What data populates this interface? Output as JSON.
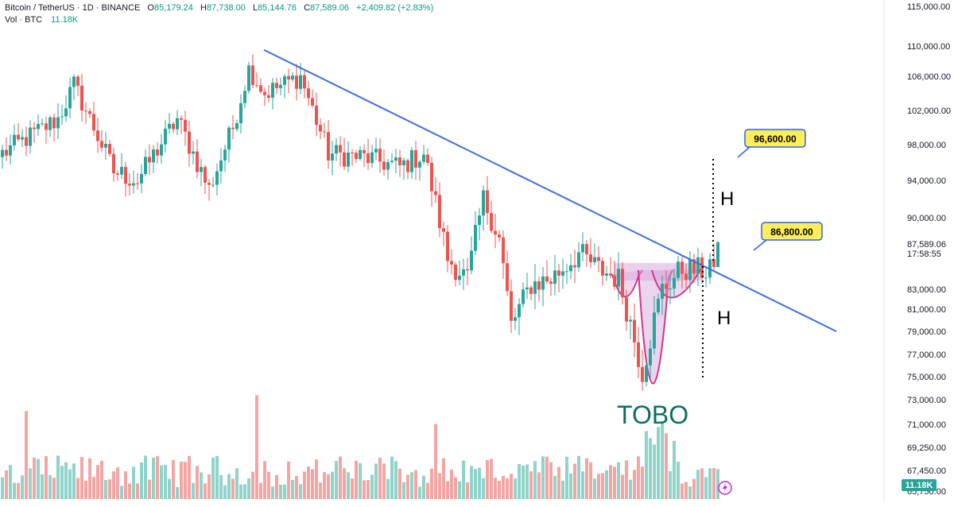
{
  "header": {
    "symbol": "Bitcoin / TetherUS · 1D · BINANCE",
    "open_key": "O",
    "open": "85,179.24",
    "high_key": "H",
    "high": "87,738.00",
    "low_key": "L",
    "low": "85,144.76",
    "close_key": "C",
    "close": "87,589.06",
    "change": "+2,409.82 (+2.83%)",
    "volume_label": "Vol · BTC",
    "volume_value": "11.18K"
  },
  "colors": {
    "up": "#26a69a",
    "down": "#ef5350",
    "up_volume": "#8fd3c9",
    "down_volume": "#f4a5a3",
    "trendline": "#3b6fe0",
    "pattern": "#d6338a",
    "pattern_fill": "#d8a9dd",
    "price_tag_bg": "#ffee58",
    "price_tag_border": "#2962ff",
    "tobo_text": "#0b6e5e"
  },
  "annotations": {
    "target_high": "96,600.00",
    "target_low": "86,800.00",
    "h_upper": "H",
    "h_lower": "H",
    "pattern_name": "TOBO",
    "last_price": "87,589.06",
    "countdown": "17:58:55",
    "volume_badge": "11.18K",
    "lightning_icon": "lightning-icon"
  },
  "chart_data": {
    "type": "candlestick",
    "symbol": "Bitcoin / TetherUS",
    "interval": "1D",
    "exchange": "BINANCE",
    "y_axis_ticks": [
      "115,000.00",
      "110,000.00",
      "106,000.00",
      "102,000.00",
      "98,000.00",
      "94,000.00",
      "90,000.00",
      "83,000.00",
      "81,000.00",
      "79,000.00",
      "77,000.00",
      "75,000.00",
      "73,000.00",
      "71,000.00",
      "69,250.00",
      "67,450.00",
      "65,750.00"
    ],
    "last_candle": {
      "open": 85179.24,
      "high": 87738.0,
      "low": 85144.76,
      "close": 87589.06
    },
    "series_anchors": [
      {
        "i": 0,
        "close": 97000
      },
      {
        "i": 14,
        "close": 101000
      },
      {
        "i": 18,
        "close": 105000
      },
      {
        "i": 28,
        "close": 95000
      },
      {
        "i": 34,
        "close": 94000
      },
      {
        "i": 44,
        "close": 101000
      },
      {
        "i": 52,
        "close": 93000
      },
      {
        "i": 58,
        "close": 100000
      },
      {
        "i": 62,
        "close": 107000
      },
      {
        "i": 66,
        "close": 104000
      },
      {
        "i": 75,
        "close": 106000
      },
      {
        "i": 82,
        "close": 97000
      },
      {
        "i": 92,
        "close": 96500
      },
      {
        "i": 100,
        "close": 95500
      },
      {
        "i": 106,
        "close": 97000
      },
      {
        "i": 112,
        "close": 86000
      },
      {
        "i": 117,
        "close": 84000
      },
      {
        "i": 121,
        "close": 92000
      },
      {
        "i": 125,
        "close": 88000
      },
      {
        "i": 128,
        "close": 79500
      },
      {
        "i": 133,
        "close": 83500
      },
      {
        "i": 138,
        "close": 84000
      },
      {
        "i": 145,
        "close": 86500
      },
      {
        "i": 150,
        "close": 85000
      },
      {
        "i": 155,
        "close": 84000
      },
      {
        "i": 161,
        "close": 75500
      },
      {
        "i": 166,
        "close": 83000
      },
      {
        "i": 171,
        "close": 85000
      },
      {
        "i": 177,
        "close": 84800
      },
      {
        "i": 180,
        "close": 87589
      }
    ],
    "trendline": [
      {
        "i": 62,
        "price": 109500
      },
      {
        "i": 221,
        "price": 79000
      }
    ],
    "targets": [
      96600,
      86800
    ]
  }
}
